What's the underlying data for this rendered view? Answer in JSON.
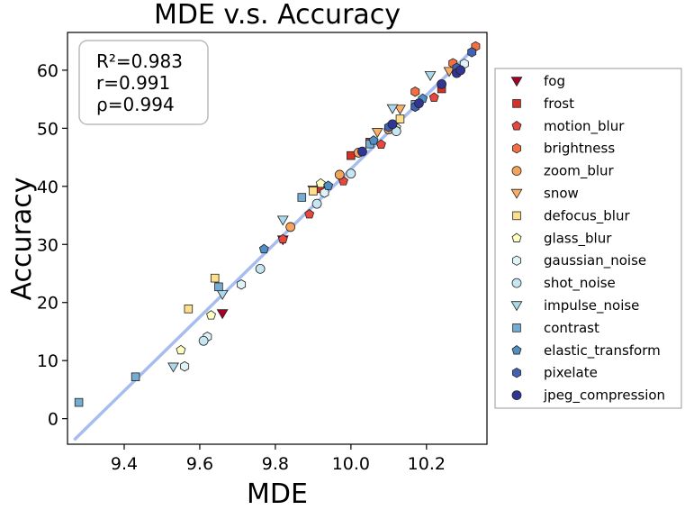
{
  "chart_data": {
    "type": "scatter",
    "title": "MDE  v.s.  Accuracy",
    "xlabel": "MDE",
    "ylabel": "Accuracy",
    "xlim": [
      9.25,
      10.36
    ],
    "ylim": [
      -4.4,
      66.5
    ],
    "xticks": [
      9.4,
      9.6,
      9.8,
      10.0,
      10.2
    ],
    "xtick_labels": [
      "9.4",
      "9.6",
      "9.8",
      "10.0",
      "10.2"
    ],
    "yticks": [
      0,
      10,
      20,
      30,
      40,
      50,
      60
    ],
    "ytick_labels": [
      "0",
      "10",
      "20",
      "30",
      "40",
      "50",
      "60"
    ],
    "stats": [
      "R²=0.983",
      "r=0.991",
      "ρ=0.994"
    ],
    "fit_line": {
      "x": [
        9.27,
        10.33
      ],
      "y": [
        -3.5,
        64.0
      ],
      "color": "#a7bdf0"
    },
    "legend_position": "right",
    "series": [
      {
        "name": "fog",
        "marker": "tri-down",
        "color": "#a50026",
        "points": [
          [
            9.66,
            18.1
          ],
          [
            9.82,
            30.8
          ],
          [
            10.28,
            60.2
          ]
        ]
      },
      {
        "name": "frost",
        "marker": "square",
        "color": "#d73027",
        "points": [
          [
            9.92,
            39.6
          ],
          [
            10.0,
            45.3
          ],
          [
            10.05,
            47.6
          ],
          [
            10.24,
            56.8
          ]
        ]
      },
      {
        "name": "motion_blur",
        "marker": "pentagon",
        "color": "#e8473c",
        "points": [
          [
            9.82,
            30.9
          ],
          [
            9.89,
            35.2
          ],
          [
            9.98,
            40.9
          ],
          [
            10.08,
            47.2
          ],
          [
            10.22,
            55.3
          ]
        ]
      },
      {
        "name": "brightness",
        "marker": "hexagon",
        "color": "#f46d43",
        "points": [
          [
            10.17,
            56.3
          ],
          [
            10.27,
            61.2
          ],
          [
            10.33,
            64.1
          ]
        ]
      },
      {
        "name": "zoom_blur",
        "marker": "circle",
        "color": "#f6a35c",
        "points": [
          [
            9.84,
            33.0
          ],
          [
            9.97,
            42.0
          ],
          [
            10.02,
            45.8
          ],
          [
            10.1,
            49.8
          ]
        ]
      },
      {
        "name": "snow",
        "marker": "tri-down",
        "color": "#fdae61",
        "points": [
          [
            9.9,
            39.4
          ],
          [
            10.07,
            49.3
          ],
          [
            10.13,
            53.3
          ],
          [
            10.26,
            59.8
          ]
        ]
      },
      {
        "name": "defocus_blur",
        "marker": "square",
        "color": "#fee08b",
        "points": [
          [
            9.57,
            18.9
          ],
          [
            9.64,
            24.2
          ],
          [
            9.9,
            39.2
          ],
          [
            10.13,
            51.6
          ]
        ]
      },
      {
        "name": "glass_blur",
        "marker": "pentagon",
        "color": "#ffffbf",
        "points": [
          [
            9.55,
            11.8
          ],
          [
            9.63,
            17.8
          ],
          [
            9.92,
            40.5
          ],
          [
            10.12,
            50.1
          ]
        ]
      },
      {
        "name": "gaussian_noise",
        "marker": "hexagon",
        "color": "#e0f3f8",
        "points": [
          [
            9.56,
            9.0
          ],
          [
            9.62,
            14.1
          ],
          [
            9.71,
            23.1
          ],
          [
            9.93,
            38.9
          ],
          [
            10.3,
            61.1
          ]
        ]
      },
      {
        "name": "shot_noise",
        "marker": "circle",
        "color": "#c6e6f2",
        "points": [
          [
            9.61,
            13.4
          ],
          [
            9.76,
            25.8
          ],
          [
            9.91,
            37.0
          ],
          [
            10.0,
            42.2
          ],
          [
            10.12,
            49.5
          ]
        ]
      },
      {
        "name": "impulse_noise",
        "marker": "tri-down",
        "color": "#abd9e9",
        "points": [
          [
            9.53,
            8.9
          ],
          [
            9.66,
            21.4
          ],
          [
            9.82,
            34.2
          ],
          [
            10.11,
            53.4
          ],
          [
            10.21,
            59.1
          ]
        ]
      },
      {
        "name": "contrast",
        "marker": "square",
        "color": "#74add1",
        "points": [
          [
            9.28,
            2.8
          ],
          [
            9.43,
            7.2
          ],
          [
            9.65,
            22.7
          ],
          [
            9.87,
            38.1
          ],
          [
            10.05,
            47.3
          ],
          [
            10.17,
            54.1
          ]
        ]
      },
      {
        "name": "elastic_transform",
        "marker": "pentagon",
        "color": "#4f8fc4",
        "points": [
          [
            9.77,
            29.2
          ],
          [
            9.94,
            40.1
          ],
          [
            10.06,
            47.9
          ],
          [
            10.19,
            55.1
          ]
        ]
      },
      {
        "name": "pixelate",
        "marker": "hexagon",
        "color": "#4062b0",
        "points": [
          [
            10.1,
            50.2
          ],
          [
            10.17,
            53.7
          ],
          [
            10.28,
            60.4
          ],
          [
            10.32,
            63.1
          ]
        ]
      },
      {
        "name": "jpeg_compression",
        "marker": "circle",
        "color": "#313695",
        "points": [
          [
            10.03,
            46.0
          ],
          [
            10.11,
            50.7
          ],
          [
            10.18,
            54.3
          ],
          [
            10.24,
            57.6
          ],
          [
            10.28,
            59.5
          ],
          [
            10.29,
            60.0
          ]
        ]
      }
    ]
  }
}
